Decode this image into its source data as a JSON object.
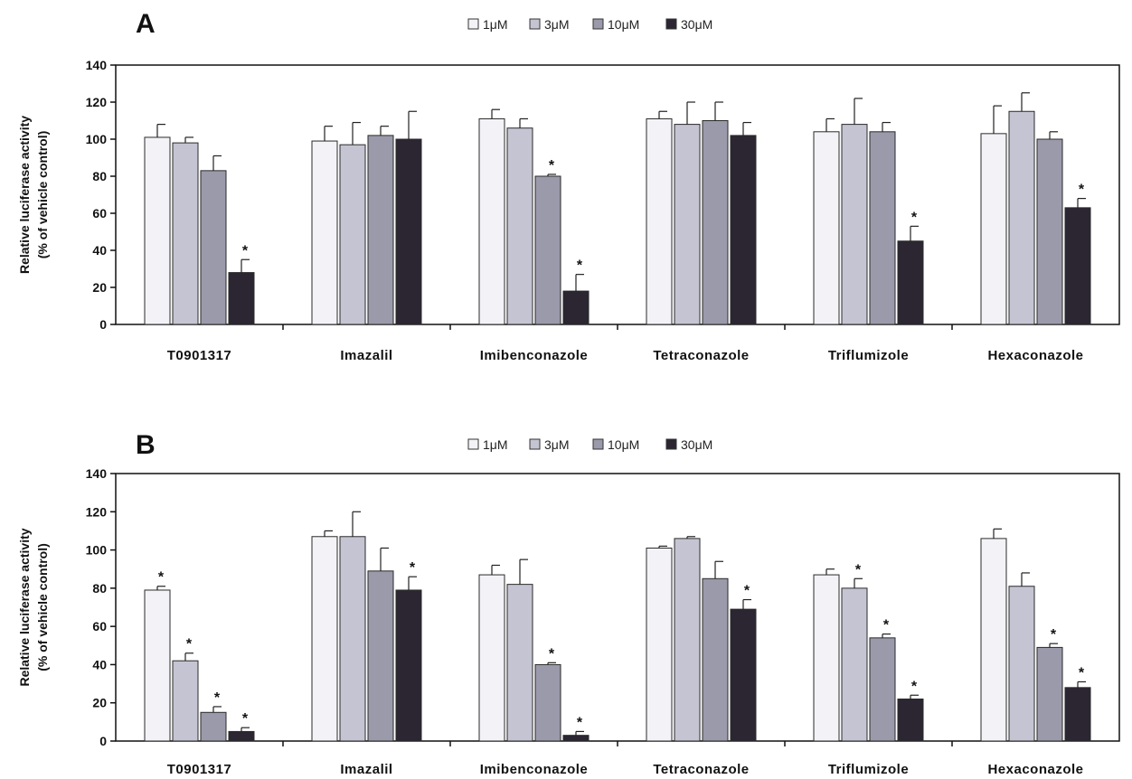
{
  "chart_data": [
    {
      "type": "bar",
      "panel": "A",
      "categories": [
        "T0901317",
        "Imazalil",
        "Imibenconazole",
        "Tetraconazole",
        "Triflumizole",
        "Hexaconazole"
      ],
      "series": [
        {
          "name": "1μM",
          "color": "#f3f3f7",
          "values": [
            101,
            99,
            111,
            111,
            104,
            103
          ],
          "errors": [
            7,
            8,
            5,
            4,
            7,
            15
          ],
          "significant": [
            false,
            false,
            false,
            false,
            false,
            false
          ]
        },
        {
          "name": "3μM",
          "color": "#c4c4d2",
          "values": [
            98,
            97,
            106,
            108,
            108,
            115
          ],
          "errors": [
            3,
            12,
            5,
            12,
            14,
            10
          ],
          "significant": [
            false,
            false,
            false,
            false,
            false,
            false
          ]
        },
        {
          "name": "10μM",
          "color": "#9a9aab",
          "values": [
            83,
            102,
            80,
            110,
            104,
            100
          ],
          "errors": [
            8,
            5,
            1,
            10,
            5,
            4
          ],
          "significant": [
            false,
            false,
            true,
            false,
            false,
            false
          ]
        },
        {
          "name": "30μM",
          "color": "#2b2632",
          "values": [
            28,
            100,
            18,
            102,
            45,
            63
          ],
          "errors": [
            7,
            15,
            9,
            7,
            8,
            5
          ],
          "significant": [
            true,
            false,
            true,
            false,
            true,
            true
          ]
        }
      ],
      "ylabel": [
        "Relative luciferase activity",
        "(% of vehicle control)"
      ],
      "ylim": [
        0,
        140
      ],
      "yticks": [
        "0",
        "20",
        "40",
        "60",
        "80",
        "100",
        "120",
        "140"
      ],
      "significance_mark": "*",
      "legend_position": "top-center",
      "grid": false
    },
    {
      "type": "bar",
      "panel": "B",
      "categories": [
        "T0901317",
        "Imazalil",
        "Imibenconazole",
        "Tetraconazole",
        "Triflumizole",
        "Hexaconazole"
      ],
      "series": [
        {
          "name": "1μM",
          "color": "#f3f3f7",
          "values": [
            79,
            107,
            87,
            101,
            87,
            106
          ],
          "errors": [
            2,
            3,
            5,
            1,
            3,
            5
          ],
          "significant": [
            true,
            false,
            false,
            false,
            false,
            false
          ]
        },
        {
          "name": "3μM",
          "color": "#c4c4d2",
          "values": [
            42,
            107,
            82,
            106,
            80,
            81
          ],
          "errors": [
            4,
            13,
            13,
            1,
            5,
            7
          ],
          "significant": [
            true,
            false,
            false,
            false,
            true,
            false
          ]
        },
        {
          "name": "10μM",
          "color": "#9a9aab",
          "values": [
            15,
            89,
            40,
            85,
            54,
            49
          ],
          "errors": [
            3,
            12,
            1,
            9,
            2,
            2
          ],
          "significant": [
            true,
            false,
            true,
            false,
            true,
            true
          ]
        },
        {
          "name": "30μM",
          "color": "#2b2632",
          "values": [
            5,
            79,
            3,
            69,
            22,
            28
          ],
          "errors": [
            2,
            7,
            2,
            5,
            2,
            3
          ],
          "significant": [
            true,
            true,
            true,
            true,
            true,
            true
          ]
        }
      ],
      "ylabel": [
        "Relative luciferase activity",
        "(% of vehicle control)"
      ],
      "ylim": [
        0,
        140
      ],
      "yticks": [
        "0",
        "20",
        "40",
        "60",
        "80",
        "100",
        "120",
        "140"
      ],
      "significance_mark": "*",
      "legend_position": "top-center",
      "grid": false
    }
  ]
}
